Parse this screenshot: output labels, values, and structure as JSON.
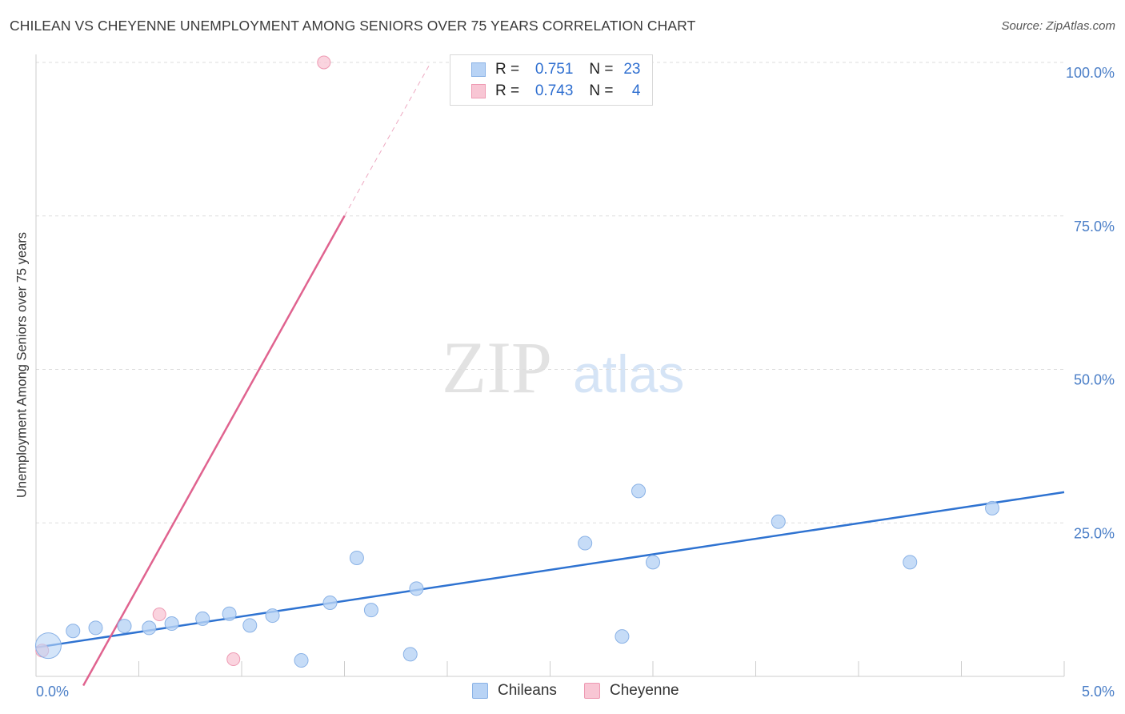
{
  "title": "CHILEAN VS CHEYENNE UNEMPLOYMENT AMONG SENIORS OVER 75 YEARS CORRELATION CHART",
  "source": "Source: ZipAtlas.com",
  "watermark": {
    "zip": "ZIP",
    "atlas": "atlas"
  },
  "legend": {
    "rows": [
      {
        "r_label": "R =",
        "r_value": "0.751",
        "n_label": "N =",
        "n_value": "23"
      },
      {
        "r_label": "R =",
        "r_value": "0.743",
        "n_label": "N =",
        "n_value": "4"
      }
    ]
  },
  "colors": {
    "chileans_fill": "#b8d3f5",
    "chileans_stroke": "#8ab2e6",
    "chileans_line": "#2f73d1",
    "cheyenne_fill": "#f8c6d4",
    "cheyenne_stroke": "#ee9ab3",
    "cheyenne_line": "#e0638f",
    "grid": "#dddddd",
    "tick_text": "#4a7ec7"
  },
  "chart_data": {
    "type": "scatter",
    "title": "CHILEAN VS CHEYENNE UNEMPLOYMENT AMONG SENIORS OVER 75 YEARS CORRELATION CHART",
    "xlabel": "",
    "ylabel": "Unemployment Among Seniors over 75 years",
    "xlim": [
      0,
      5
    ],
    "ylim": [
      0,
      100
    ],
    "x_tick_labels": [
      "0.0%",
      "5.0%"
    ],
    "y_ticks": [
      25,
      50,
      75,
      100
    ],
    "y_tick_labels": [
      "25.0%",
      "50.0%",
      "75.0%",
      "100.0%"
    ],
    "grid": true,
    "series": [
      {
        "name": "Chileans",
        "r": 0.751,
        "n": 23,
        "points": [
          {
            "x": 0.06,
            "y": 5.0,
            "size": "large"
          },
          {
            "x": 0.18,
            "y": 7.4
          },
          {
            "x": 0.29,
            "y": 7.9
          },
          {
            "x": 0.43,
            "y": 8.2
          },
          {
            "x": 0.55,
            "y": 7.9
          },
          {
            "x": 0.66,
            "y": 8.6
          },
          {
            "x": 0.81,
            "y": 9.4
          },
          {
            "x": 0.94,
            "y": 10.2
          },
          {
            "x": 1.04,
            "y": 8.3
          },
          {
            "x": 1.15,
            "y": 9.9
          },
          {
            "x": 1.29,
            "y": 2.6
          },
          {
            "x": 1.43,
            "y": 12.0
          },
          {
            "x": 1.56,
            "y": 19.3
          },
          {
            "x": 1.63,
            "y": 10.8
          },
          {
            "x": 1.82,
            "y": 3.6
          },
          {
            "x": 1.85,
            "y": 14.3
          },
          {
            "x": 2.67,
            "y": 21.7
          },
          {
            "x": 2.85,
            "y": 6.5
          },
          {
            "x": 2.93,
            "y": 30.2
          },
          {
            "x": 3.0,
            "y": 18.6
          },
          {
            "x": 3.61,
            "y": 25.2
          },
          {
            "x": 4.25,
            "y": 18.6
          },
          {
            "x": 4.65,
            "y": 27.4
          }
        ],
        "trend": {
          "x0": 0.0,
          "y0": 4.7,
          "x1": 5.0,
          "y1": 30.0
        }
      },
      {
        "name": "Cheyenne",
        "r": 0.743,
        "n": 4,
        "points": [
          {
            "x": 0.03,
            "y": 4.2
          },
          {
            "x": 0.6,
            "y": 10.1
          },
          {
            "x": 0.96,
            "y": 2.8
          },
          {
            "x": 1.4,
            "y": 100.0
          }
        ],
        "trend": {
          "x0": 0.23,
          "y0": -1.5,
          "x1": 1.5,
          "y1": 75.0,
          "dashed_to": {
            "x": 1.92,
            "y": 100.0
          }
        }
      }
    ]
  },
  "bottom_legend": [
    {
      "label": "Chileans"
    },
    {
      "label": "Cheyenne"
    }
  ]
}
